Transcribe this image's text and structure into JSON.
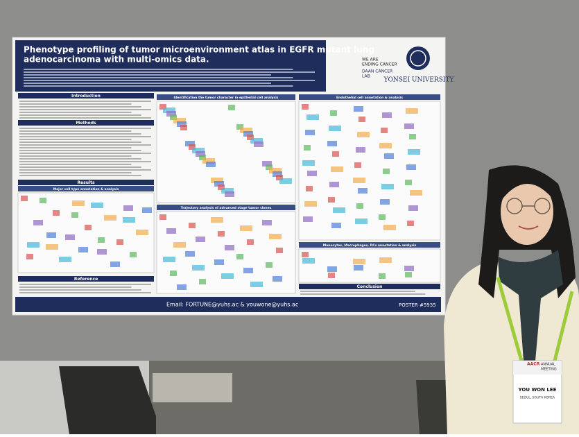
{
  "poster": {
    "title_lines": [
      "Phenotype profiling of tumor microenvironment atlas in EGFR mutant lung",
      "adenocarcinoma with multi-omics data."
    ],
    "logo_lab": [
      "WE ARE",
      "ENDING CANCER",
      "DAAN CANCER",
      "LAB"
    ],
    "university": "YONSEI UNIVERSITY",
    "sections": {
      "introduction": "Introduction",
      "methods": "Methods",
      "results": "Results",
      "reference": "Reference",
      "conclusion": "Conclusion"
    },
    "panels": [
      "Major cell type annotation & analysis",
      "Identification the tumor character in epithelial cell analysis",
      "Trajectory analysis of advanced stage tumor clones",
      "Endothelial cell annotation & analysis",
      "Monocytes, Macrophages, DCs annotation & analysis"
    ],
    "email": "Email: FORTUNE@yuhs.ac & youwone@yuhs.ac",
    "poster_number": "POSTER #5935"
  },
  "badge": {
    "event": [
      "AACR",
      "ANNUAL",
      "MEETING"
    ],
    "name": "YOU WON LEE",
    "location": "SEOUL, SOUTH KOREA"
  }
}
